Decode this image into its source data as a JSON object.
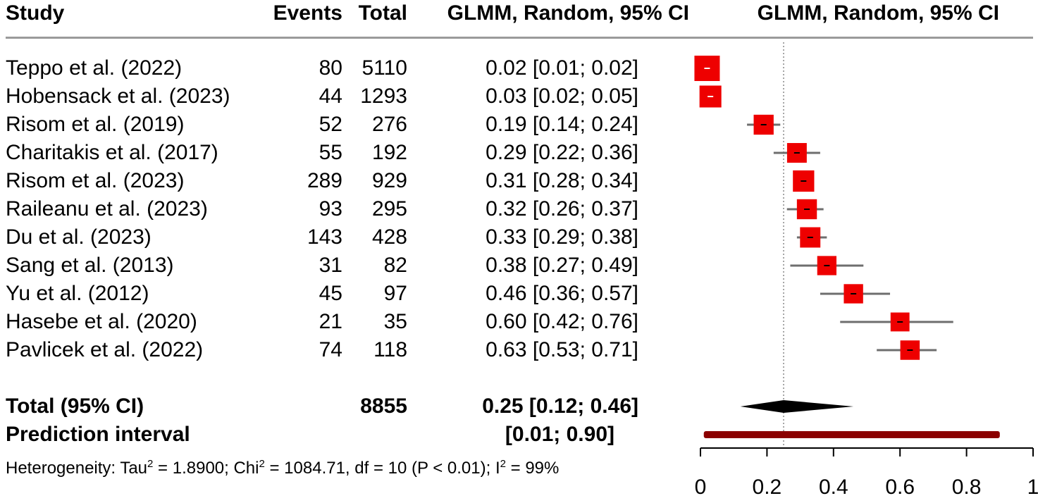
{
  "headers": {
    "study": "Study",
    "events": "Events",
    "total": "Total",
    "estimate": "GLMM, Random, 95% CI",
    "plot": "GLMM, Random, 95% CI"
  },
  "studies": [
    {
      "name": "Teppo et al. (2022)",
      "events": "80",
      "total": "5110",
      "ci_text": "0.02 [0.01; 0.02]"
    },
    {
      "name": "Hobensack et al. (2023)",
      "events": "44",
      "total": "1293",
      "ci_text": "0.03 [0.02; 0.05]"
    },
    {
      "name": "Risom et al. (2019)",
      "events": "52",
      "total": "276",
      "ci_text": "0.19 [0.14; 0.24]"
    },
    {
      "name": "Charitakis et al. (2017)",
      "events": "55",
      "total": "192",
      "ci_text": "0.29 [0.22; 0.36]"
    },
    {
      "name": "Risom et al. (2023)",
      "events": "289",
      "total": "929",
      "ci_text": "0.31 [0.28; 0.34]"
    },
    {
      "name": "Raileanu et al. (2023)",
      "events": "93",
      "total": "295",
      "ci_text": "0.32 [0.26; 0.37]"
    },
    {
      "name": "Du et al. (2023)",
      "events": "143",
      "total": "428",
      "ci_text": "0.33 [0.29; 0.38]"
    },
    {
      "name": "Sang et al. (2013)",
      "events": "31",
      "total": "82",
      "ci_text": "0.38 [0.27; 0.49]"
    },
    {
      "name": "Yu et al. (2012)",
      "events": "45",
      "total": "97",
      "ci_text": "0.46 [0.36; 0.57]"
    },
    {
      "name": "Hasebe et al. (2020)",
      "events": "21",
      "total": "35",
      "ci_text": "0.60 [0.42; 0.76]"
    },
    {
      "name": "Pavlicek et al. (2022)",
      "events": "74",
      "total": "118",
      "ci_text": "0.63 [0.53; 0.71]"
    }
  ],
  "pooled": {
    "label": "Total (95% CI)",
    "total": "8855",
    "ci_text": "0.25 [0.12; 0.46]"
  },
  "prediction": {
    "label": "Prediction interval",
    "ci_text": "[0.01; 0.90]"
  },
  "heterogeneity": {
    "prefix": "Heterogeneity: Tau",
    "tau_sup": "2",
    "tau_val": " = 1.8900; Chi",
    "chi_sup": "2",
    "chi_val": " = 1084.71, df = 10 (P < 0.01); I",
    "i_sup": "2",
    "i_val": " = 99%"
  },
  "colors": {
    "box": "#ee0000",
    "ci_line": "#6e6e6e",
    "diamond": "#000000",
    "prediction": "#8b0000",
    "reference": "#888888",
    "axis": "#000000"
  },
  "chart_data": {
    "type": "forest",
    "title": "GLMM, Random, 95% CI",
    "measure": "proportion",
    "categories": [
      "Teppo et al. (2022)",
      "Hobensack et al. (2023)",
      "Risom et al. (2019)",
      "Charitakis et al. (2017)",
      "Risom et al. (2023)",
      "Raileanu et al. (2023)",
      "Du et al. (2023)",
      "Sang et al. (2013)",
      "Yu et al. (2012)",
      "Hasebe et al. (2020)",
      "Pavlicek et al. (2022)"
    ],
    "estimates": [
      0.02,
      0.03,
      0.19,
      0.29,
      0.31,
      0.32,
      0.33,
      0.38,
      0.46,
      0.6,
      0.63
    ],
    "lower": [
      0.01,
      0.02,
      0.14,
      0.22,
      0.28,
      0.26,
      0.29,
      0.27,
      0.36,
      0.42,
      0.53
    ],
    "upper": [
      0.02,
      0.05,
      0.24,
      0.36,
      0.34,
      0.37,
      0.38,
      0.49,
      0.57,
      0.76,
      0.71
    ],
    "events": [
      80,
      44,
      52,
      55,
      289,
      93,
      143,
      31,
      45,
      21,
      74
    ],
    "totals": [
      5110,
      1293,
      276,
      192,
      929,
      295,
      428,
      82,
      97,
      35,
      118
    ],
    "pooled": {
      "estimate": 0.25,
      "lower": 0.12,
      "upper": 0.46,
      "total": 8855
    },
    "prediction_interval": {
      "lower": 0.01,
      "upper": 0.9
    },
    "reference_value": 0.25,
    "xlim": [
      0,
      1
    ],
    "xticks": [
      0,
      0.2,
      0.4,
      0.6,
      0.8,
      1
    ],
    "xtick_labels": [
      "0",
      "0.2",
      "0.4",
      "0.6",
      "0.8",
      "1"
    ]
  }
}
